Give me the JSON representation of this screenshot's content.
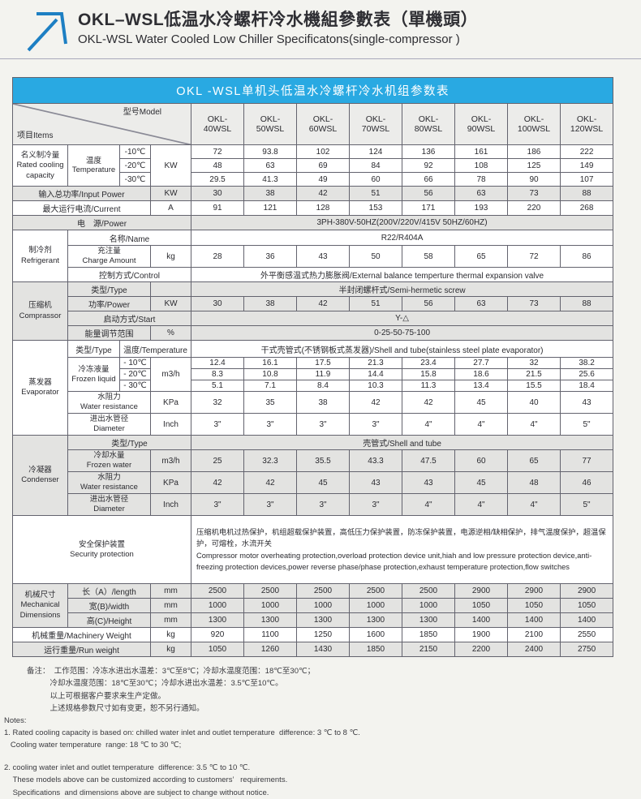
{
  "colors": {
    "banner-blue": "#29a9e2",
    "stripe": "#e3e3e1",
    "header-gray": "#ececea",
    "border": "#63636e",
    "accent-arrow": "#1d7fc3",
    "page-bg": "#f3f3ef"
  },
  "header": {
    "icon": "trend-arrow-up-right-icon",
    "title_cn": "OKL–WSL低温水冷螺杆冷水機組參數表（單機頭）",
    "title_en": "OKL-WSL Water Cooled Low Chiller Specificatons(single-compressor )"
  },
  "table": {
    "banner": "OKL -WSL单机头低温水冷螺杆冷水机组参数表",
    "corner_items": "项目Items",
    "corner_model": "型号Model",
    "models": [
      "OKL-\n40WSL",
      "OKL-\n50WSL",
      "OKL-\n60WSL",
      "OKL-\n70WSL",
      "OKL-\n80WSL",
      "OKL-\n90WSL",
      "OKL-\n100WSL",
      "OKL-\n120WSL"
    ],
    "capacity": {
      "cat_cn": "名义制冷量",
      "cat_en1": "Rated cooling",
      "cat_en2": "capacity",
      "sub_cn": "温度",
      "sub_en": "Temperature",
      "unit": "KW",
      "temps": [
        "-10℃",
        "-20℃",
        "-30℃"
      ],
      "values": [
        [
          72,
          93.8,
          102,
          124,
          136,
          161,
          186,
          222
        ],
        [
          48,
          63,
          69,
          84,
          92,
          108,
          125,
          149
        ],
        [
          29.5,
          41.3,
          49,
          60,
          66,
          78,
          90,
          107
        ]
      ]
    },
    "input_power": {
      "label": "输入总功率/Input Power",
      "unit": "KW",
      "values": [
        30,
        38,
        42,
        51,
        56,
        63,
        73,
        88
      ]
    },
    "current": {
      "label": "最大运行电流/Current",
      "unit": "A",
      "values": [
        91,
        121,
        128,
        153,
        171,
        193,
        220,
        268
      ]
    },
    "power": {
      "label": "电　源/Power",
      "value": "3PH-380V-50HZ(200V/220V/415V  50HZ/60HZ)"
    },
    "refrigerant": {
      "cat_cn": "制冷剂",
      "cat_en": "Refrigerant",
      "name_label": "名称/Name",
      "name_value": "R22/R404A",
      "charge_cn": "充注量",
      "charge_en": "Charge Amount",
      "charge_unit": "kg",
      "charge_values": [
        28,
        36,
        43,
        50,
        58,
        65,
        72,
        86
      ],
      "control_label": "控制方式/Control",
      "control_value": "外平衡感温式热力膨胀阀/External balance temperture thermal expansion valve"
    },
    "compressor": {
      "cat_cn": "压缩机",
      "cat_en": "Comprassor",
      "type_label": "类型/Type",
      "type_value": "半封闭螺杆式/Semi-hermetic screw",
      "power_label": "功率/Power",
      "power_unit": "KW",
      "power_values": [
        30,
        38,
        42,
        51,
        56,
        63,
        73,
        88
      ],
      "start_label": "启动方式/Start",
      "start_value": "Y-△",
      "energy_label": "能量调节范围",
      "energy_unit": "%",
      "energy_value": "0-25-50-75-100"
    },
    "evaporator": {
      "cat_cn": "蒸发器",
      "cat_en": "Evaporator",
      "type_label": "类型/Type",
      "temp_label": "温度/Temperature",
      "type_value": "干式壳管式(不锈钢板式蒸发器)/Shell and tube(stainless steel plate evaporator)",
      "frozen_cn": "冷冻液量",
      "frozen_en": "Frozen liquid",
      "frozen_unit": "m3/h",
      "temps": [
        "- 10℃",
        "- 20℃",
        "- 30℃"
      ],
      "frozen_values": [
        [
          12.4,
          16.1,
          17.5,
          21.3,
          23.4,
          27.7,
          32,
          38.2
        ],
        [
          8.3,
          10.8,
          11.9,
          14.4,
          15.8,
          18.6,
          21.5,
          25.6
        ],
        [
          5.1,
          7.1,
          8.4,
          10.3,
          11.3,
          13.4,
          15.5,
          18.4
        ]
      ],
      "wres_cn": "水阻力",
      "wres_en": "Water resistance",
      "wres_unit": "KPa",
      "wres_values": [
        32,
        35,
        38,
        42,
        42,
        45,
        40,
        43
      ],
      "diam_cn": "进出水管径",
      "diam_en": "Diameter",
      "diam_unit": "Inch",
      "diam_values": [
        "3\"",
        "3\"",
        "3\"",
        "3\"",
        "4\"",
        "4\"",
        "4\"",
        "5\""
      ]
    },
    "condenser": {
      "cat_cn": "冷凝器",
      "cat_en": "Condenser",
      "type_label": "类型/Type",
      "type_value": "壳管式/Shell and tube",
      "water_cn": "冷却水量",
      "water_en": "Frozen water",
      "water_unit": "m3/h",
      "water_values": [
        25,
        32.3,
        35.5,
        43.3,
        47.5,
        60,
        65,
        77
      ],
      "wres_cn": "水阻力",
      "wres_en": "Water resistance",
      "wres_unit": "KPa",
      "wres_values": [
        42,
        42,
        45,
        43,
        43,
        45,
        48,
        46
      ],
      "diam_cn": "进出水管径",
      "diam_en": "Diameter",
      "diam_unit": "Inch",
      "diam_values": [
        "3\"",
        "3\"",
        "3\"",
        "3\"",
        "4\"",
        "4\"",
        "4\"",
        "5\""
      ]
    },
    "security": {
      "label_cn": "安全保护装置",
      "label_en": "Security protection",
      "text_cn": "压缩机电机过热保护，机组超载保护装置，高低压力保护装置，防冻保护装置，电源逆相/缺相保护，排气温度保护，超温保护，可熔栓，水流开关",
      "text_en": "Compressor motor overheating protection,overload protection device unit,hiah and low pressure protection device,anti-freezing protection devices,power reverse phase/phase protection,exhaust temperature protection,flow switches"
    },
    "mechanical": {
      "cat_cn": "机械尺寸",
      "cat_en1": "Mechanical",
      "cat_en2": "Dimensions",
      "length_label": "长（A）/length",
      "length_unit": "mm",
      "length_values": [
        2500,
        2500,
        2500,
        2500,
        2500,
        2900,
        2900,
        2900
      ],
      "width_label": "宽(B)/width",
      "width_unit": "mm",
      "width_values": [
        1000,
        1000,
        1000,
        1000,
        1000,
        1050,
        1050,
        1050
      ],
      "height_label": "高(C)/Height",
      "height_unit": "mm",
      "height_values": [
        1300,
        1300,
        1300,
        1300,
        1300,
        1400,
        1400,
        1400
      ]
    },
    "mweight": {
      "label": "机械重量/Machinery Weight",
      "unit": "kg",
      "values": [
        920,
        1100,
        1250,
        1600,
        1850,
        1900,
        2100,
        2550
      ]
    },
    "rweight": {
      "label": "运行重量/Run weight",
      "unit": "kg",
      "values": [
        1050,
        1260,
        1430,
        1850,
        2150,
        2200,
        2400,
        2750
      ]
    }
  },
  "notes": {
    "cn_lines": [
      "备注：  工作范围：冷冻水进出水温差：3℃至8℃；冷却水温度范围：18℃至30℃；",
      "　　　冷却水温度范围：18℃至30℃；冷却水进出水温差：3.5℃至10℃。",
      "　　　以上可根据客户要求来生产定做。",
      "　　　上述规格参数尺寸如有变更，恕不另行通知。"
    ],
    "en_lines": [
      "Notes:",
      "1. Rated cooling capacity is based on: chilled water inlet and outlet temperature  difference: 3 ℃ to 8 ℃.",
      "   Cooling water temperature  range: 18 ℃ to 30 ℃;",
      "",
      "2. cooling water inlet and outlet temperature  difference: 3.5 ℃ to 10 ℃.",
      "    These models above can be customized according to customers’   requirements.",
      "    Specifications  and dimensions above are subject to change without notice."
    ]
  }
}
